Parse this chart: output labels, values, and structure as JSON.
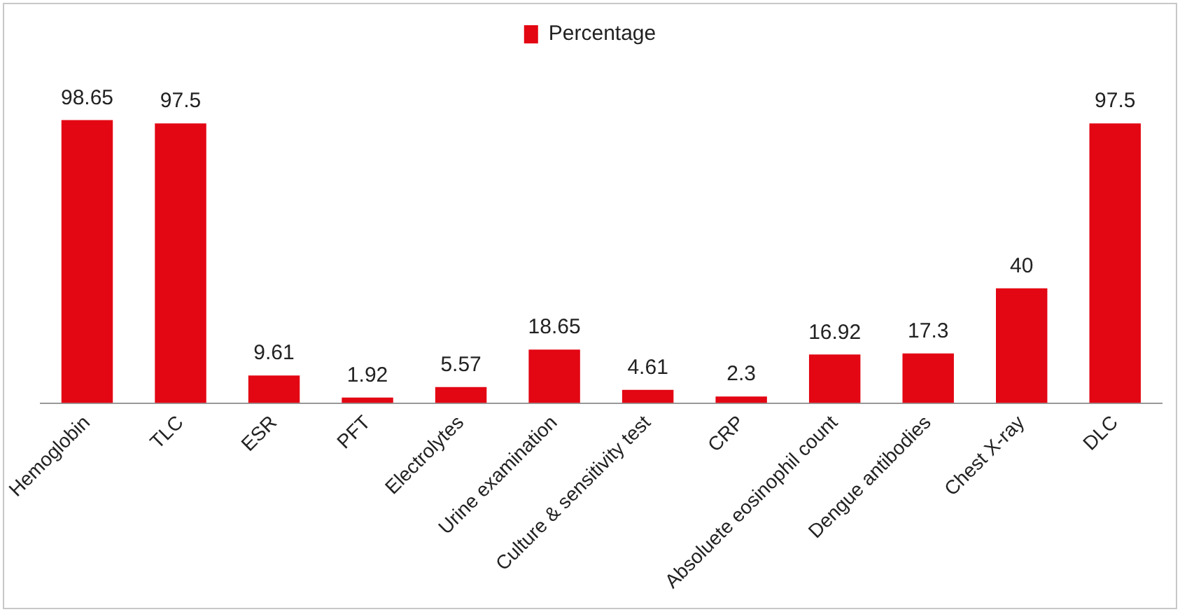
{
  "chart_data": {
    "type": "bar",
    "categories": [
      "Hemoglobin",
      "TLC",
      "ESR",
      "PFT",
      "Electrolytes",
      "Urine examination",
      "Culture & sensitivity test",
      "CRP",
      "Absoluete eosinophil count",
      "Dengue antibodies",
      "Chest X-ray",
      "DLC"
    ],
    "series": [
      {
        "name": "Percentage",
        "color": "#e30613",
        "values": [
          98.65,
          97.5,
          9.61,
          1.92,
          5.57,
          18.65,
          4.61,
          2.3,
          16.92,
          17.3,
          40,
          97.5
        ]
      }
    ],
    "data_labels": true,
    "legend": "top",
    "grid": false,
    "tick_labels": "x"
  }
}
